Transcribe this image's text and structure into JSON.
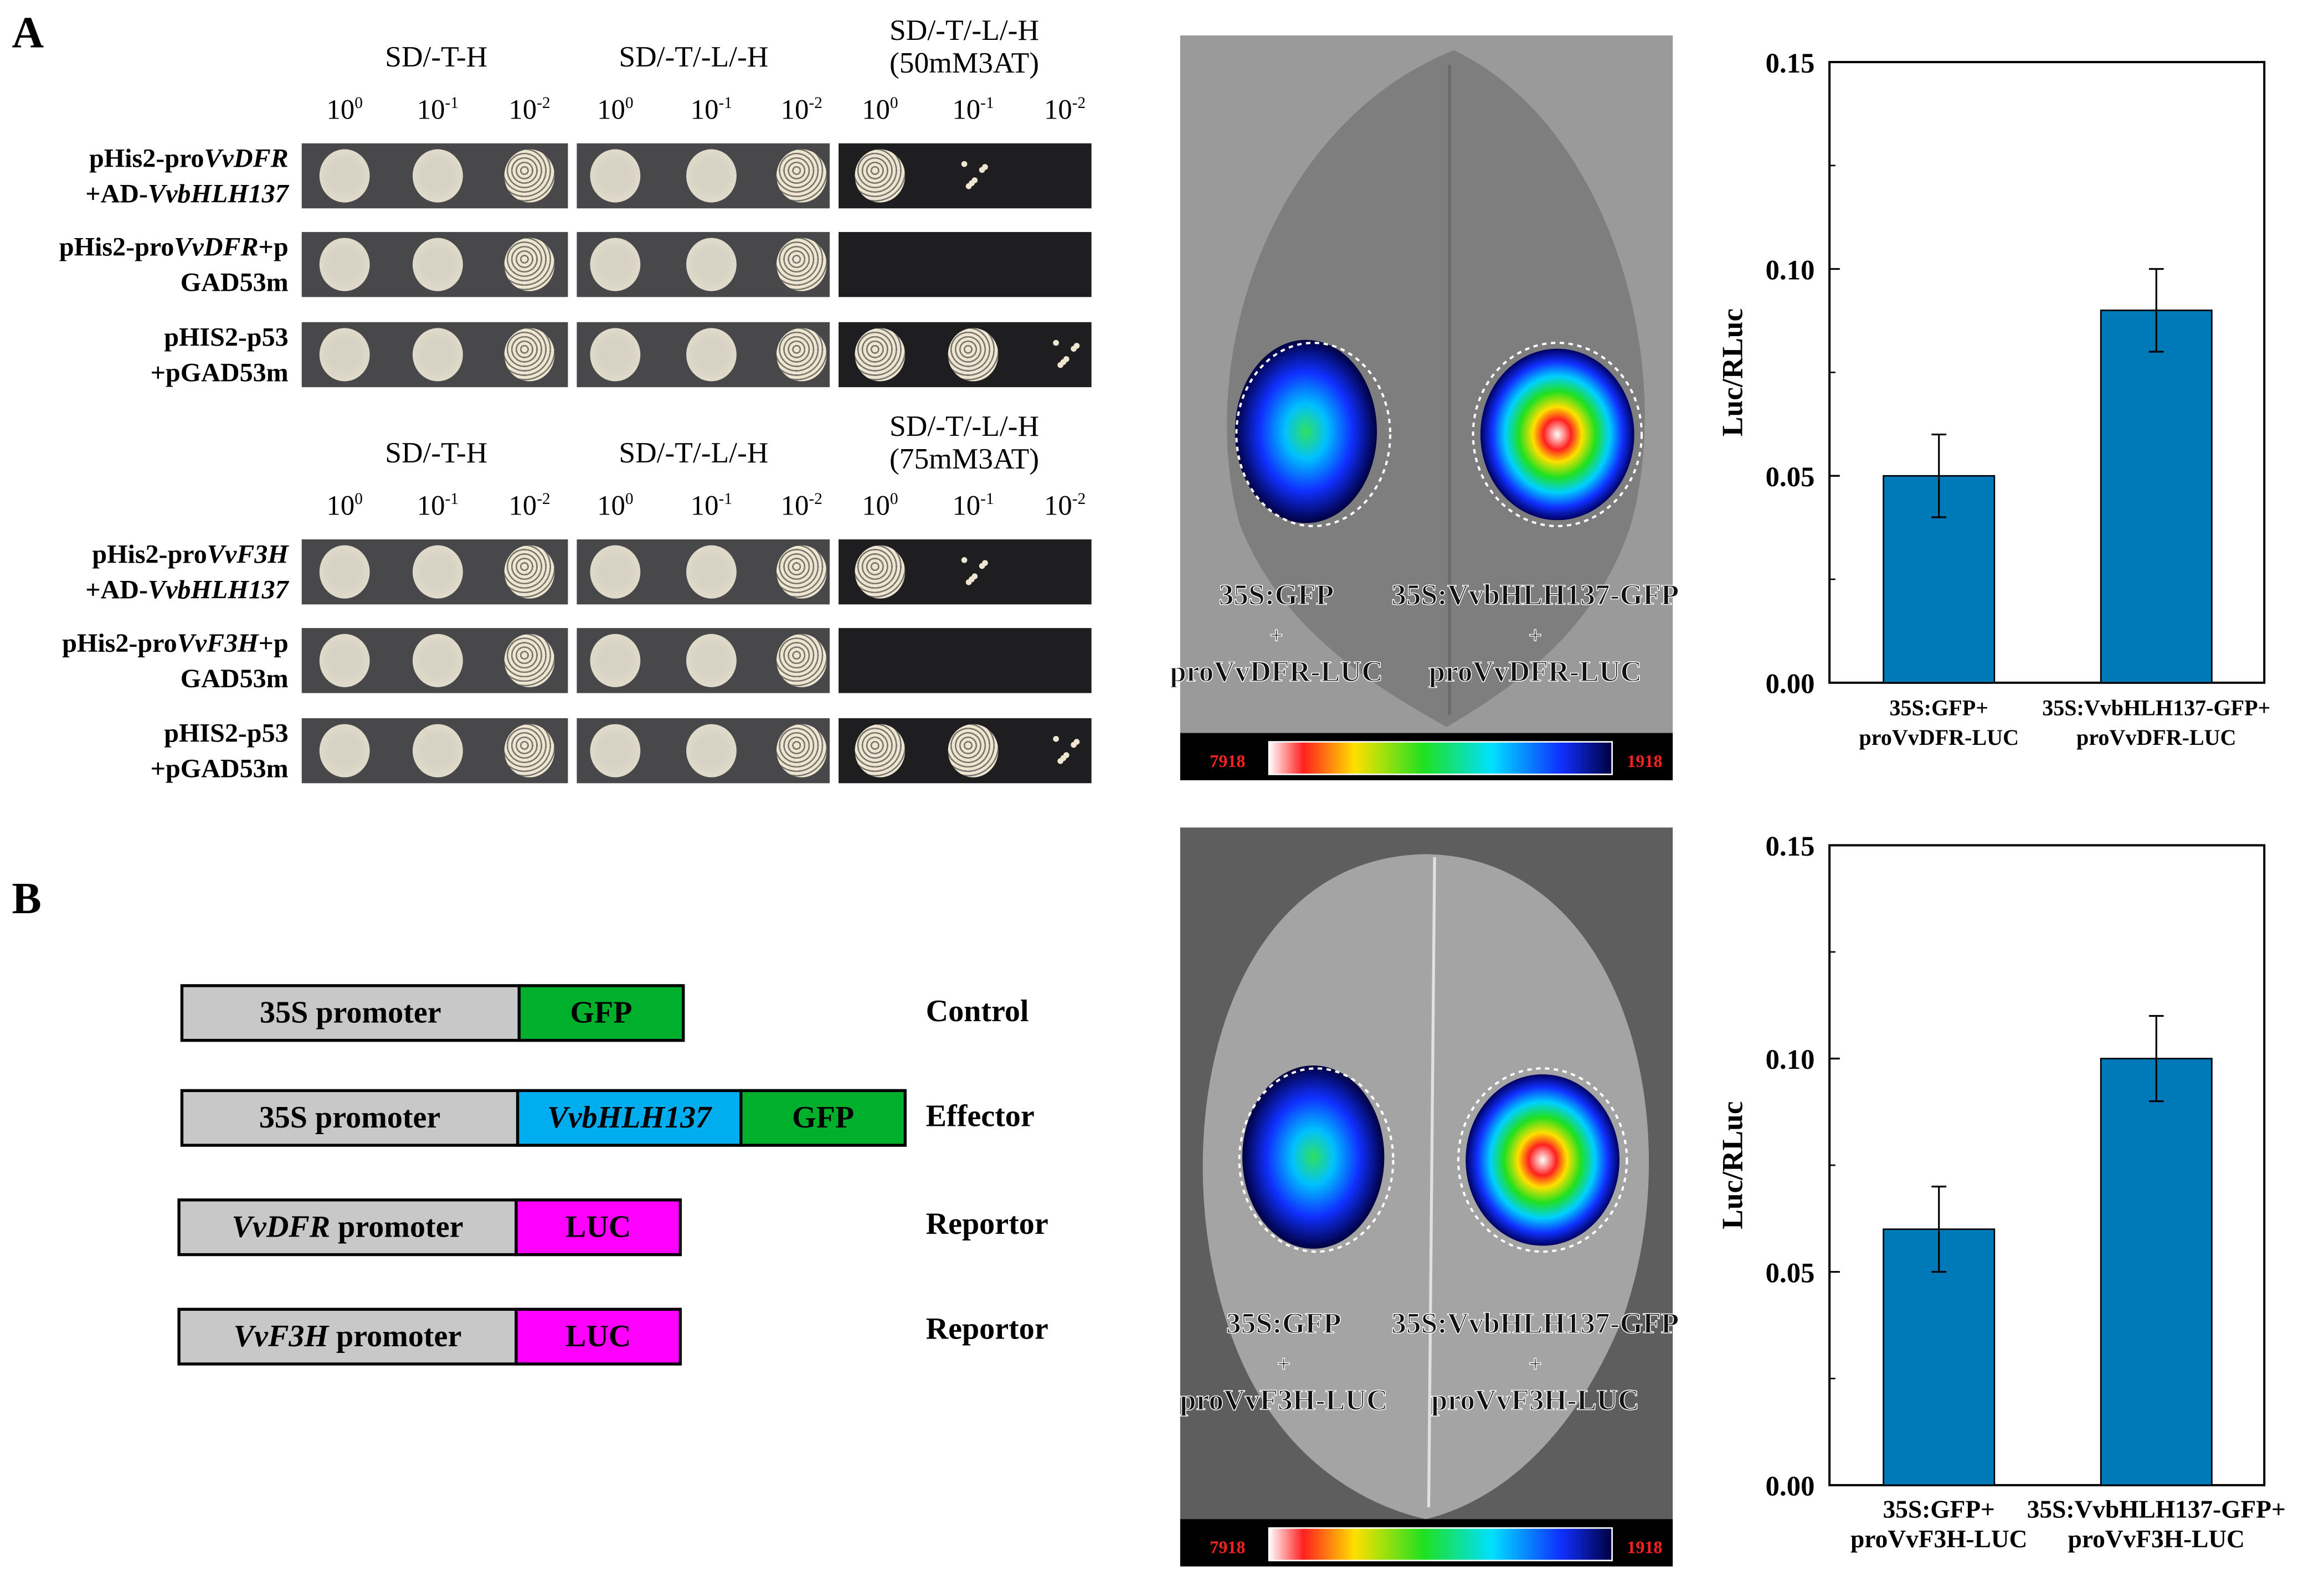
{
  "panel_a_label": "A",
  "panel_b_label": "B",
  "yeast": {
    "blocks": [
      {
        "headers": [
          "SD/-T-H",
          "SD/-T/-L/-H",
          "SD/-T/-L/-H",
          "(50mM3AT)"
        ],
        "dilutions": [
          "10",
          "0",
          "10",
          "-1",
          "10",
          "-2"
        ],
        "rows": [
          {
            "l1a": "pHis2-pro",
            "l1i": "VvDFR",
            "l1b": "",
            "l2a": "+AD-",
            "l2i": "VvbHLH137"
          },
          {
            "l1a": "pHis2-pro",
            "l1i": "VvDFR",
            "l1b": "+p",
            "l2a": "GAD53m",
            "l2i": ""
          },
          {
            "l1a": "pHIS2-p53",
            "l1i": "",
            "l1b": "",
            "l2a": "+pGAD53m",
            "l2i": ""
          }
        ]
      },
      {
        "headers": [
          "SD/-T-H",
          "SD/-T/-L/-H",
          "SD/-T/-L/-H",
          "(75mM3AT)"
        ],
        "dilutions": [
          "10",
          "0",
          "10",
          "-1",
          "10",
          "-2"
        ],
        "rows": [
          {
            "l1a": "pHis2-pro",
            "l1i": "VvF3H",
            "l1b": "",
            "l2a": "+AD-",
            "l2i": "VvbHLH137"
          },
          {
            "l1a": "pHis2-pro",
            "l1i": "VvF3H",
            "l1b": "+p",
            "l2a": "GAD53m",
            "l2i": ""
          },
          {
            "l1a": "pHIS2-p53",
            "l1i": "",
            "l1b": "",
            "l2a": "+pGAD53m",
            "l2i": ""
          }
        ]
      }
    ]
  },
  "constructs": [
    {
      "label": "Control",
      "parts": [
        {
          "text": "35S promoter",
          "italic": "",
          "color": "#c8c8c8"
        },
        {
          "text": "GFP",
          "color": "#00b02c"
        }
      ]
    },
    {
      "label": "Effector",
      "parts": [
        {
          "text": "35S promoter",
          "color": "#c8c8c8"
        },
        {
          "text": "VvbHLH137",
          "color": "#00aeef"
        },
        {
          "text": "GFP",
          "color": "#00b02c"
        }
      ]
    },
    {
      "label": "Reportor",
      "parts": [
        {
          "italic": "VvDFR",
          "text": " promoter",
          "color": "#c8c8c8"
        },
        {
          "text": "LUC",
          "color": "#ff00ff"
        }
      ]
    },
    {
      "label": "Reportor",
      "parts": [
        {
          "italic": "VvF3H",
          "text": " promoter",
          "color": "#c8c8c8"
        },
        {
          "text": "LUC",
          "color": "#ff00ff"
        }
      ]
    }
  ],
  "leaves": [
    {
      "left": [
        "35S:GFP",
        "+",
        "proVvDFR-LUC"
      ],
      "right": [
        "35S:VvbHLH137-GFP",
        "+",
        "proVvDFR-LUC"
      ],
      "scale_max": "7918",
      "scale_min": "1918"
    },
    {
      "left": [
        "35S:GFP",
        "+",
        "proVvF3H-LUC"
      ],
      "right": [
        "35S:VvbHLH137-GFP",
        "+",
        "proVvF3H-LUC"
      ],
      "scale_max": "7918",
      "scale_min": "1918"
    }
  ],
  "chart_data": [
    {
      "type": "bar",
      "ylabel": "Luc/RLuc",
      "ylim": [
        0,
        0.15
      ],
      "yticks": [
        "0.00",
        "0.05",
        "0.10",
        "0.15"
      ],
      "categories": [
        [
          "35S:GFP+",
          "proVvDFR-LUC"
        ],
        [
          "35S:VvbHLH137-GFP+",
          "proVvDFR-LUC"
        ]
      ],
      "values": [
        0.05,
        0.09
      ],
      "errors": [
        0.01,
        0.01
      ],
      "color": "#0079b8"
    },
    {
      "type": "bar",
      "ylabel": "Luc/RLuc",
      "ylim": [
        0,
        0.15
      ],
      "yticks": [
        "0.00",
        "0.05",
        "0.10",
        "0.15"
      ],
      "categories": [
        [
          "35S:GFP+",
          "proVvF3H-LUC"
        ],
        [
          "35S:VvbHLH137-GFP+",
          "proVvF3H-LUC"
        ]
      ],
      "values": [
        0.06,
        0.1
      ],
      "errors": [
        0.01,
        0.01
      ],
      "color": "#0079b8"
    }
  ]
}
